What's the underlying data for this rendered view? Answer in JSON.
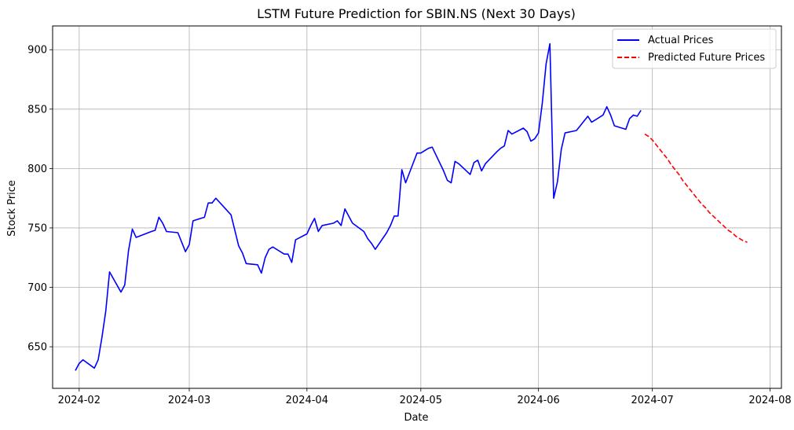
{
  "chart_data": {
    "type": "line",
    "title": "LSTM Future Prediction for SBIN.NS (Next 30 Days)",
    "xlabel": "Date",
    "ylabel": "Stock Price",
    "xlim": [
      "2024-01-25",
      "2024-08-04"
    ],
    "ylim": [
      615,
      920
    ],
    "x_ticks": [
      "2024-02-01",
      "2024-03-01",
      "2024-04-01",
      "2024-05-01",
      "2024-06-01",
      "2024-07-01",
      "2024-08-01"
    ],
    "x_tick_labels": [
      "2024-02",
      "2024-03",
      "2024-04",
      "2024-05",
      "2024-06",
      "2024-07",
      "2024-08"
    ],
    "y_ticks": [
      650,
      700,
      750,
      800,
      850,
      900
    ],
    "y_tick_labels": [
      "650",
      "700",
      "750",
      "800",
      "850",
      "900"
    ],
    "grid": true,
    "legend_position": "top-right",
    "series": [
      {
        "name": "Actual Prices",
        "color": "#0000ff",
        "style": "solid",
        "points": [
          [
            "2024-01-31",
            630
          ],
          [
            "2024-02-01",
            636
          ],
          [
            "2024-02-02",
            639
          ],
          [
            "2024-02-05",
            632
          ],
          [
            "2024-02-06",
            639
          ],
          [
            "2024-02-07",
            658
          ],
          [
            "2024-02-08",
            680
          ],
          [
            "2024-02-09",
            713
          ],
          [
            "2024-02-12",
            696
          ],
          [
            "2024-02-13",
            702
          ],
          [
            "2024-02-14",
            731
          ],
          [
            "2024-02-15",
            749
          ],
          [
            "2024-02-16",
            742
          ],
          [
            "2024-02-20",
            747
          ],
          [
            "2024-02-21",
            748
          ],
          [
            "2024-02-22",
            759
          ],
          [
            "2024-02-23",
            754
          ],
          [
            "2024-02-24",
            747
          ],
          [
            "2024-02-27",
            746
          ],
          [
            "2024-02-28",
            738
          ],
          [
            "2024-02-29",
            730
          ],
          [
            "2024-03-01",
            736
          ],
          [
            "2024-03-02",
            756
          ],
          [
            "2024-03-05",
            759
          ],
          [
            "2024-03-06",
            771
          ],
          [
            "2024-03-07",
            771
          ],
          [
            "2024-03-08",
            775
          ],
          [
            "2024-03-12",
            761
          ],
          [
            "2024-03-13",
            748
          ],
          [
            "2024-03-14",
            735
          ],
          [
            "2024-03-15",
            729
          ],
          [
            "2024-03-16",
            720
          ],
          [
            "2024-03-19",
            719
          ],
          [
            "2024-03-20",
            712
          ],
          [
            "2024-03-21",
            725
          ],
          [
            "2024-03-22",
            732
          ],
          [
            "2024-03-23",
            734
          ],
          [
            "2024-03-26",
            728
          ],
          [
            "2024-03-27",
            728
          ],
          [
            "2024-03-28",
            721
          ],
          [
            "2024-03-29",
            740
          ],
          [
            "2024-04-01",
            745
          ],
          [
            "2024-04-02",
            752
          ],
          [
            "2024-04-03",
            758
          ],
          [
            "2024-04-04",
            747
          ],
          [
            "2024-04-05",
            752
          ],
          [
            "2024-04-08",
            754
          ],
          [
            "2024-04-09",
            756
          ],
          [
            "2024-04-10",
            752
          ],
          [
            "2024-04-11",
            766
          ],
          [
            "2024-04-12",
            760
          ],
          [
            "2024-04-13",
            754
          ],
          [
            "2024-04-16",
            747
          ],
          [
            "2024-04-17",
            741
          ],
          [
            "2024-04-18",
            737
          ],
          [
            "2024-04-19",
            732
          ],
          [
            "2024-04-22",
            746
          ],
          [
            "2024-04-23",
            752
          ],
          [
            "2024-04-24",
            760
          ],
          [
            "2024-04-25",
            760
          ],
          [
            "2024-04-26",
            799
          ],
          [
            "2024-04-27",
            788
          ],
          [
            "2024-04-30",
            813
          ],
          [
            "2024-05-01",
            813
          ],
          [
            "2024-05-02",
            815
          ],
          [
            "2024-05-03",
            817
          ],
          [
            "2024-05-04",
            818
          ],
          [
            "2024-05-07",
            798
          ],
          [
            "2024-05-08",
            790
          ],
          [
            "2024-05-09",
            788
          ],
          [
            "2024-05-10",
            806
          ],
          [
            "2024-05-11",
            804
          ],
          [
            "2024-05-14",
            795
          ],
          [
            "2024-05-15",
            805
          ],
          [
            "2024-05-16",
            807
          ],
          [
            "2024-05-17",
            798
          ],
          [
            "2024-05-18",
            804
          ],
          [
            "2024-05-21",
            814
          ],
          [
            "2024-05-22",
            817
          ],
          [
            "2024-05-23",
            819
          ],
          [
            "2024-05-24",
            832
          ],
          [
            "2024-05-25",
            829
          ],
          [
            "2024-05-28",
            834
          ],
          [
            "2024-05-29",
            831
          ],
          [
            "2024-05-30",
            823
          ],
          [
            "2024-05-31",
            825
          ],
          [
            "2024-06-01",
            830
          ],
          [
            "2024-06-02",
            855
          ],
          [
            "2024-06-03",
            888
          ],
          [
            "2024-06-04",
            905
          ],
          [
            "2024-06-05",
            775
          ],
          [
            "2024-06-06",
            789
          ],
          [
            "2024-06-07",
            816
          ],
          [
            "2024-06-08",
            830
          ],
          [
            "2024-06-11",
            832
          ],
          [
            "2024-06-12",
            836
          ],
          [
            "2024-06-13",
            840
          ],
          [
            "2024-06-14",
            844
          ],
          [
            "2024-06-15",
            839
          ],
          [
            "2024-06-18",
            845
          ],
          [
            "2024-06-19",
            852
          ],
          [
            "2024-06-20",
            845
          ],
          [
            "2024-06-21",
            836
          ],
          [
            "2024-06-24",
            833
          ],
          [
            "2024-06-25",
            842
          ],
          [
            "2024-06-26",
            845
          ],
          [
            "2024-06-27",
            844
          ],
          [
            "2024-06-28",
            849
          ]
        ]
      },
      {
        "name": "Predicted Future Prices",
        "color": "#ff0000",
        "style": "dashed",
        "points": [
          [
            "2024-06-29",
            829
          ],
          [
            "2024-06-30",
            827
          ],
          [
            "2024-07-01",
            824
          ],
          [
            "2024-07-02",
            820
          ],
          [
            "2024-07-03",
            816
          ],
          [
            "2024-07-04",
            812
          ],
          [
            "2024-07-05",
            808
          ],
          [
            "2024-07-06",
            803
          ],
          [
            "2024-07-07",
            799
          ],
          [
            "2024-07-08",
            795
          ],
          [
            "2024-07-09",
            790
          ],
          [
            "2024-07-10",
            786
          ],
          [
            "2024-07-11",
            782
          ],
          [
            "2024-07-12",
            778
          ],
          [
            "2024-07-13",
            774
          ],
          [
            "2024-07-14",
            770
          ],
          [
            "2024-07-15",
            767
          ],
          [
            "2024-07-16",
            763
          ],
          [
            "2024-07-17",
            760
          ],
          [
            "2024-07-18",
            757
          ],
          [
            "2024-07-19",
            754
          ],
          [
            "2024-07-20",
            751
          ],
          [
            "2024-07-21",
            748
          ],
          [
            "2024-07-22",
            746
          ],
          [
            "2024-07-23",
            743
          ],
          [
            "2024-07-24",
            741
          ],
          [
            "2024-07-25",
            739
          ],
          [
            "2024-07-26",
            738
          ]
        ]
      }
    ]
  }
}
